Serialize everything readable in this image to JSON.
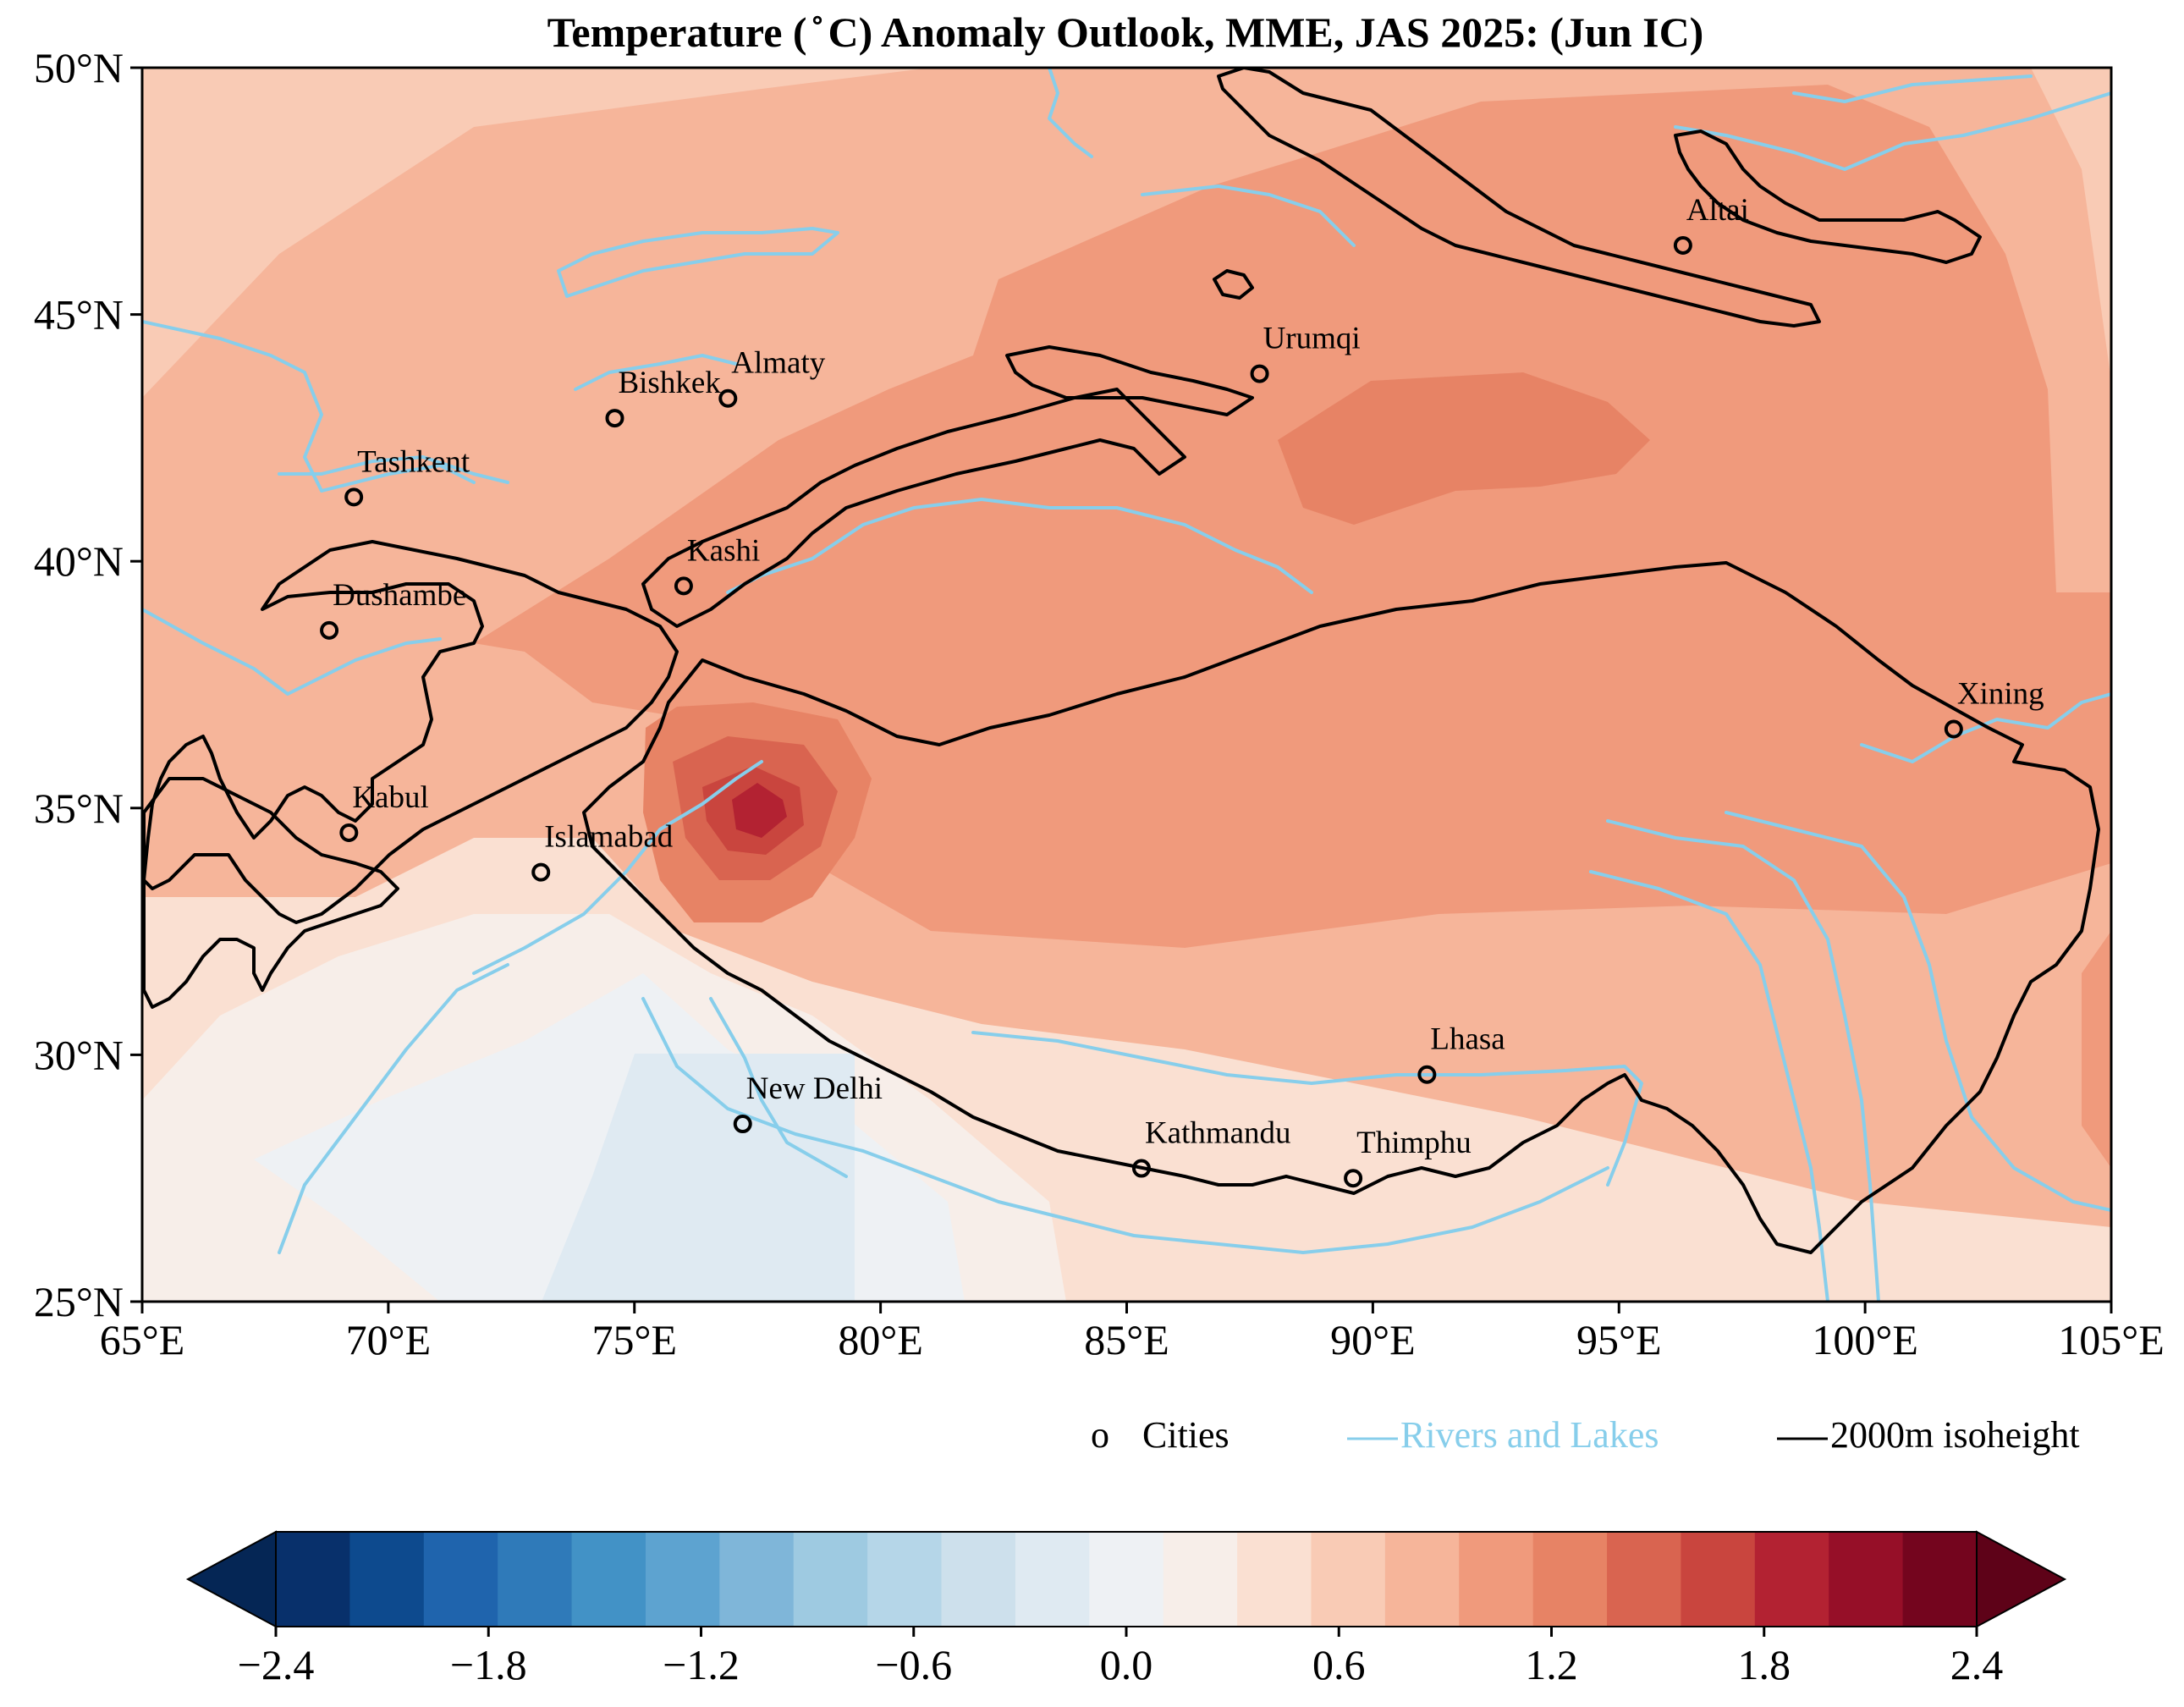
{
  "title": "Temperature ( ̊ C) Anomaly Outlook, MME, JAS  2025:  (Jun IC)",
  "axes": {
    "x_ticks": [
      "65°E",
      "70°E",
      "75°E",
      "80°E",
      "85°E",
      "90°E",
      "95°E",
      "100°E",
      "105°E"
    ],
    "y_ticks": [
      "50°N",
      "45°N",
      "40°N",
      "35°N",
      "30°N",
      "25°N"
    ]
  },
  "legend": {
    "cities_marker": "o",
    "cities_label": "Cities",
    "rivers_label": "Rivers and Lakes",
    "isoheight_label": "2000m isoheight"
  },
  "colorbar": {
    "tick_labels": [
      "−2.4",
      "−1.8",
      "−1.2",
      "−0.6",
      "0.0",
      "0.6",
      "1.2",
      "1.8",
      "2.4"
    ],
    "colors": [
      "#08306b",
      "#0d4a8e",
      "#1f64ad",
      "#2f7ab9",
      "#4292c6",
      "#5da3d0",
      "#7fb6d9",
      "#9ecae1",
      "#b5d6e8",
      "#cde0ec",
      "#dfeaf2",
      "#eef1f4",
      "#f7eee9",
      "#fae0d2",
      "#f9cbb5",
      "#f6b59a",
      "#f09a7c",
      "#e78365",
      "#d96450",
      "#c9453e",
      "#b32232",
      "#960f28",
      "#74051e"
    ],
    "under_color": "#052655",
    "over_color": "#5e0218"
  },
  "colors": {
    "river": "#87ceeb",
    "isoheight": "#000000",
    "cities": "#000000"
  },
  "cities": [
    {
      "name": "Altai",
      "lon": 96.3,
      "lat": 46.4
    },
    {
      "name": "Urumqi",
      "lon": 87.7,
      "lat": 43.8
    },
    {
      "name": "Almaty",
      "lon": 76.9,
      "lat": 43.3
    },
    {
      "name": "Bishkek",
      "lon": 74.6,
      "lat": 42.9
    },
    {
      "name": "Tashkent",
      "lon": 69.3,
      "lat": 41.3
    },
    {
      "name": "Kashi",
      "lon": 76.0,
      "lat": 39.5
    },
    {
      "name": "Dushambe",
      "lon": 68.8,
      "lat": 38.6
    },
    {
      "name": "Xining",
      "lon": 101.8,
      "lat": 36.6
    },
    {
      "name": "Kabul",
      "lon": 69.2,
      "lat": 34.5
    },
    {
      "name": "Islamabad",
      "lon": 73.1,
      "lat": 33.7
    },
    {
      "name": "Lhasa",
      "lon": 91.1,
      "lat": 29.6
    },
    {
      "name": "New Delhi",
      "lon": 77.2,
      "lat": 28.6
    },
    {
      "name": "Kathmandu",
      "lon": 85.3,
      "lat": 27.7
    },
    {
      "name": "Thimphu",
      "lon": 89.6,
      "lat": 27.5
    }
  ],
  "chart_data": {
    "type": "heatmap",
    "title": "Temperature ( ̊ C) Anomaly Outlook, MME, JAS  2025:  (Jun IC)",
    "xlabel": "",
    "ylabel": "",
    "xlim": [
      65,
      105
    ],
    "ylim": [
      25,
      50
    ],
    "x_ticks": [
      65,
      70,
      75,
      80,
      85,
      90,
      95,
      100,
      105
    ],
    "y_ticks": [
      25,
      30,
      35,
      40,
      45,
      50
    ],
    "colorbar_levels": [
      -2.4,
      -1.8,
      -1.2,
      -0.6,
      0.0,
      0.6,
      1.2,
      1.8,
      2.4
    ],
    "grid": false,
    "legend_position": "bottom-right",
    "anomaly_features": [
      {
        "level": 1.05,
        "lon": 87.5,
        "lat": 42.0,
        "note": "moderate warm core east of Tarim basin"
      },
      {
        "level": 2.1,
        "lon": 77.5,
        "lat": 35.0,
        "note": "strongest warm maximum over Karakoram"
      },
      {
        "level": -0.3,
        "lon": 77.0,
        "lat": 27.0,
        "note": "weak cool anomaly over north India"
      }
    ]
  }
}
